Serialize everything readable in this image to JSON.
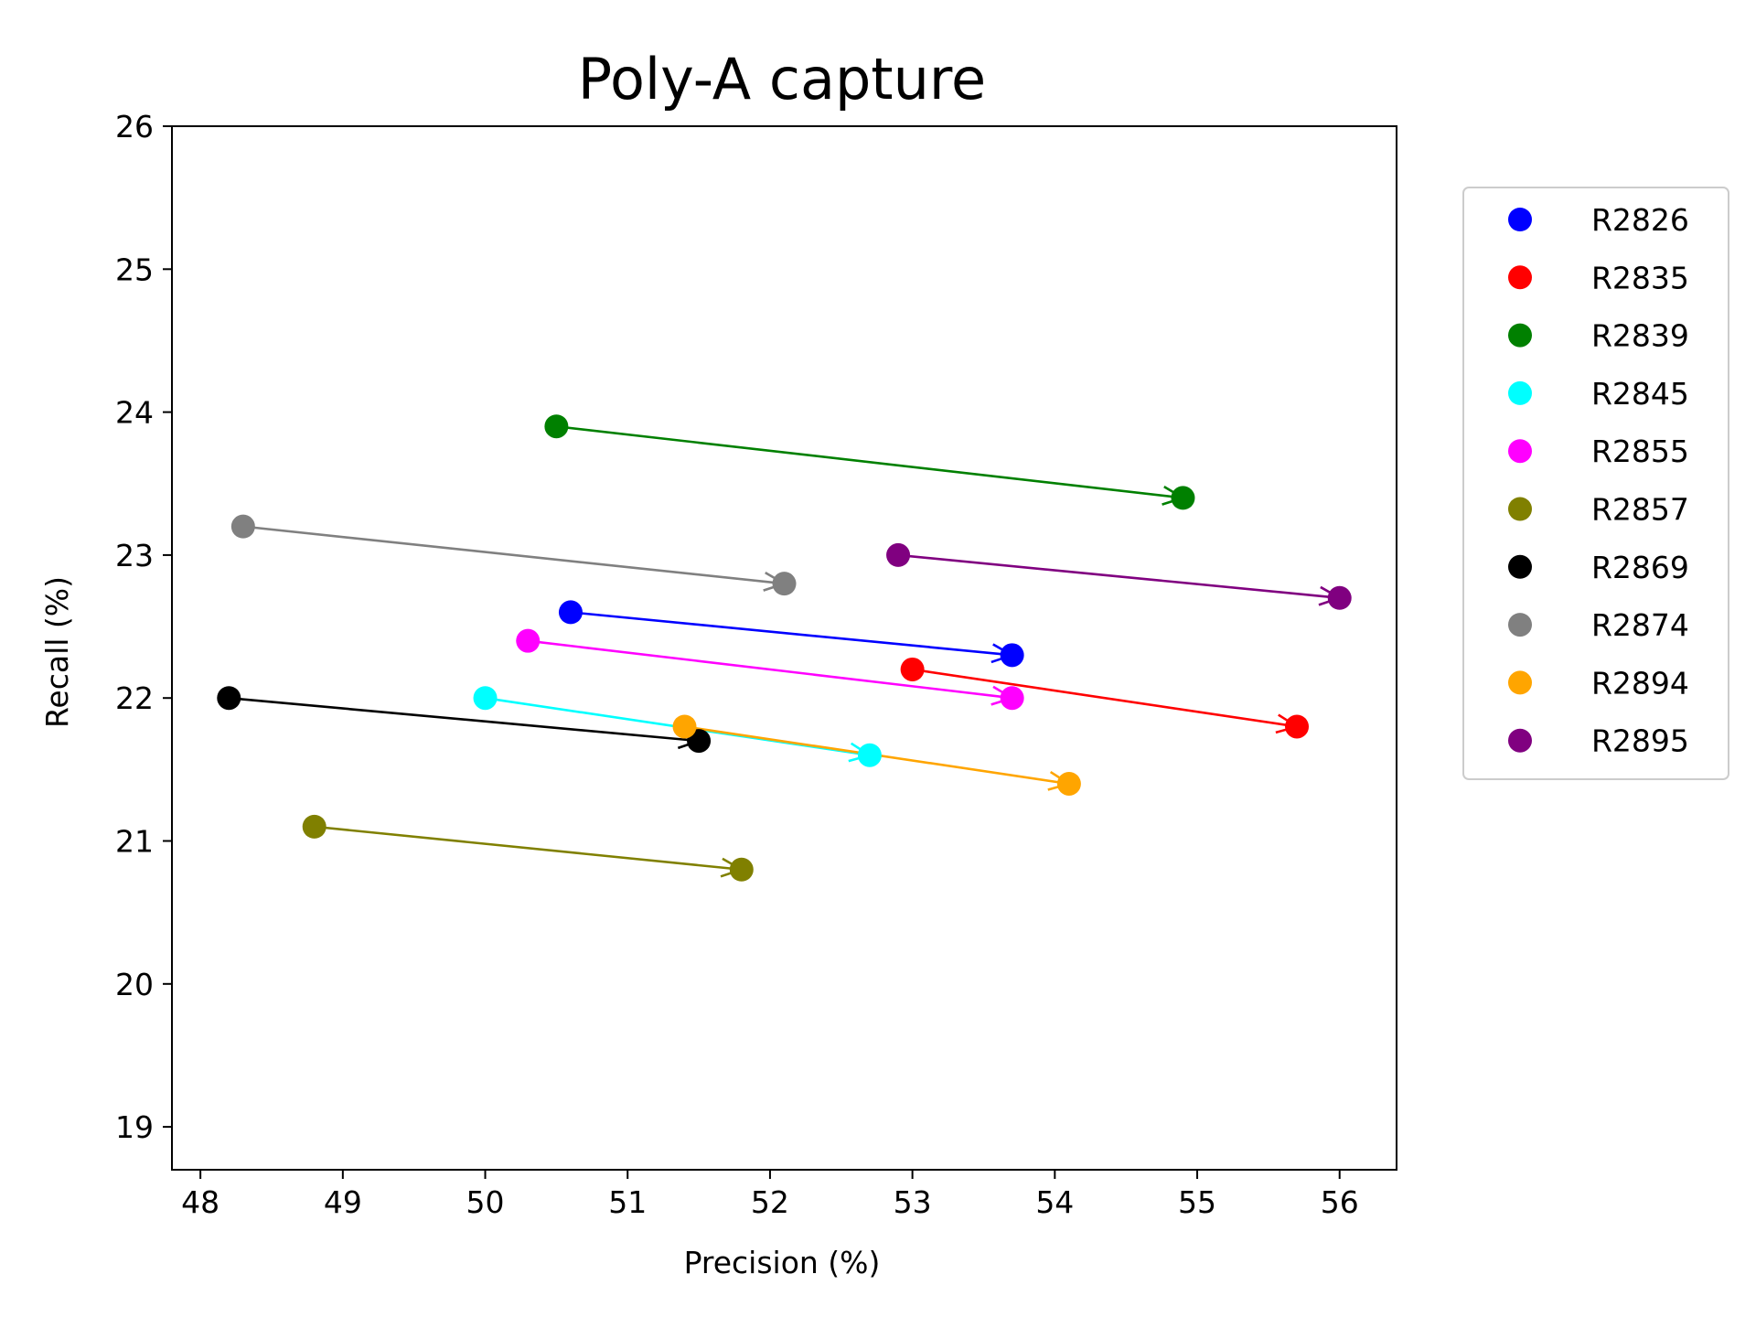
{
  "chart_data": {
    "type": "scatter",
    "title": "Poly-A capture",
    "xlabel": "Precision (%)",
    "ylabel": "Recall (%)",
    "xlim": [
      47.8,
      56.4
    ],
    "ylim": [
      18.7,
      26.0
    ],
    "xticks": [
      48,
      49,
      50,
      51,
      52,
      53,
      54,
      55,
      56
    ],
    "yticks": [
      19,
      20,
      21,
      22,
      23,
      24,
      25,
      26
    ],
    "grid": false,
    "legend_position": "outside right, upper",
    "series": [
      {
        "name": "R2826",
        "color": "#0000ff",
        "from": {
          "x": 50.6,
          "y": 22.6
        },
        "to": {
          "x": 53.7,
          "y": 22.3
        }
      },
      {
        "name": "R2835",
        "color": "#ff0000",
        "from": {
          "x": 53.0,
          "y": 22.2
        },
        "to": {
          "x": 55.7,
          "y": 21.8
        }
      },
      {
        "name": "R2839",
        "color": "#008000",
        "from": {
          "x": 50.5,
          "y": 23.9
        },
        "to": {
          "x": 54.9,
          "y": 23.4
        }
      },
      {
        "name": "R2845",
        "color": "#00ffff",
        "from": {
          "x": 50.0,
          "y": 22.0
        },
        "to": {
          "x": 52.7,
          "y": 21.6
        }
      },
      {
        "name": "R2855",
        "color": "#ff00ff",
        "from": {
          "x": 50.3,
          "y": 22.4
        },
        "to": {
          "x": 53.7,
          "y": 22.0
        }
      },
      {
        "name": "R2857",
        "color": "#808000",
        "from": {
          "x": 48.8,
          "y": 21.1
        },
        "to": {
          "x": 51.8,
          "y": 20.8
        }
      },
      {
        "name": "R2869",
        "color": "#000000",
        "from": {
          "x": 48.2,
          "y": 22.0
        },
        "to": {
          "x": 51.5,
          "y": 21.7
        }
      },
      {
        "name": "R2874",
        "color": "#808080",
        "from": {
          "x": 48.3,
          "y": 23.2
        },
        "to": {
          "x": 52.1,
          "y": 22.8
        }
      },
      {
        "name": "R2894",
        "color": "#ffa500",
        "from": {
          "x": 51.4,
          "y": 21.8
        },
        "to": {
          "x": 54.1,
          "y": 21.4
        }
      },
      {
        "name": "R2895",
        "color": "#800080",
        "from": {
          "x": 52.9,
          "y": 23.0
        },
        "to": {
          "x": 56.0,
          "y": 22.7
        }
      }
    ]
  }
}
